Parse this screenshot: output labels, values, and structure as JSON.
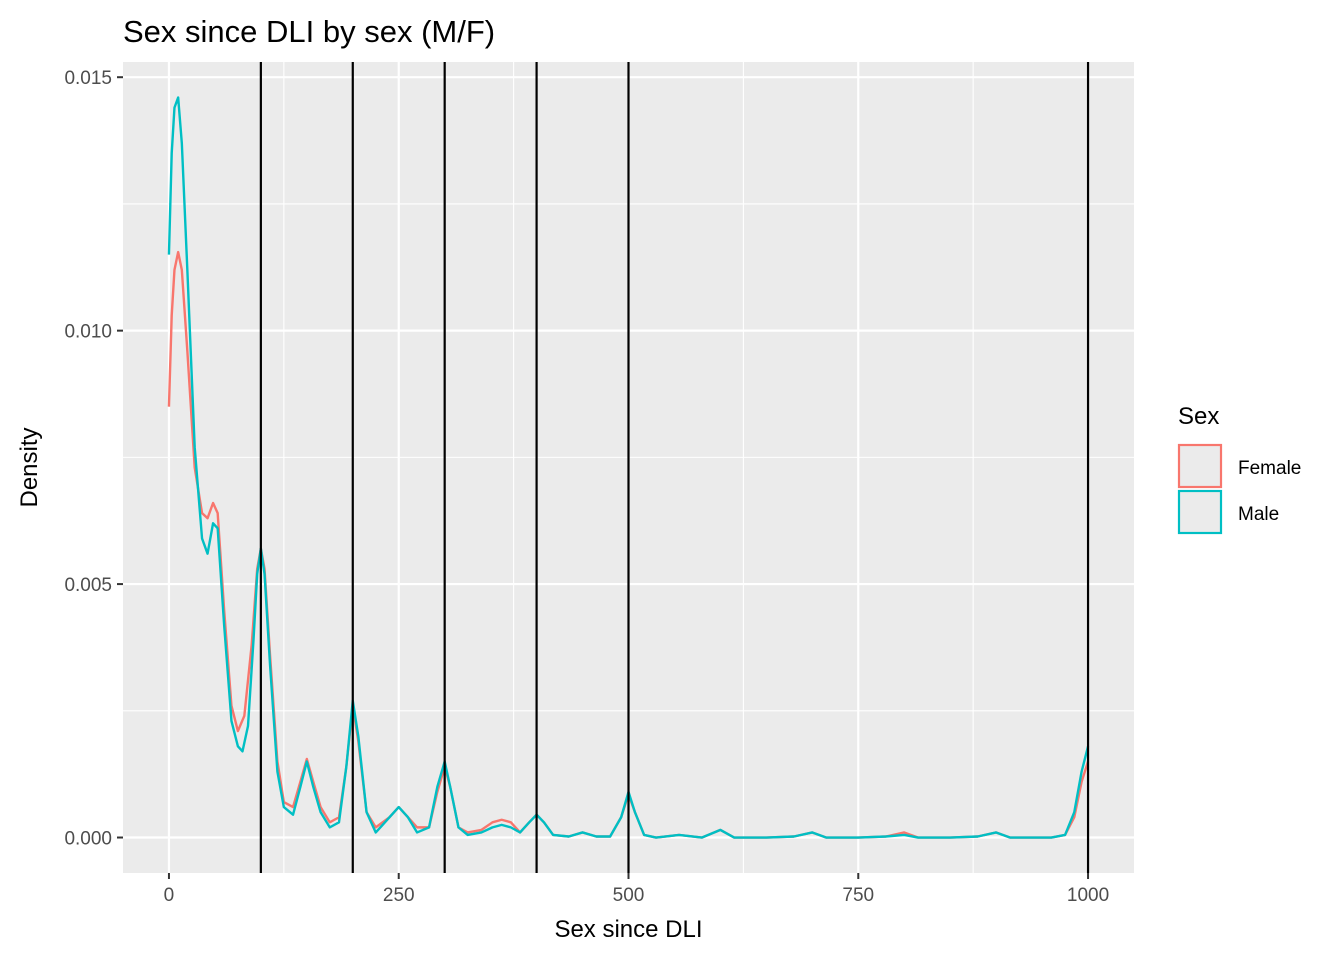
{
  "chart_data": {
    "type": "line",
    "title": "Sex since DLI by sex (M/F)",
    "xlabel": "Sex since DLI",
    "ylabel": "Density",
    "xlim": [
      -50,
      1050
    ],
    "ylim": [
      -0.0007,
      0.0153
    ],
    "x_ticks": [
      0,
      250,
      500,
      750,
      1000
    ],
    "x_tick_labels": [
      "0",
      "250",
      "500",
      "750",
      "1000"
    ],
    "y_ticks": [
      0.0,
      0.005,
      0.01,
      0.015
    ],
    "y_tick_labels": [
      "0.000",
      "0.005",
      "0.010",
      "0.015"
    ],
    "grid": true,
    "legend": {
      "title": "Sex",
      "position": "right"
    },
    "vlines": [
      100,
      200,
      300,
      400,
      500,
      1000
    ],
    "vline_color": "#000000",
    "series": [
      {
        "name": "Female",
        "color": "#F8766D",
        "points": [
          [
            0,
            0.0085
          ],
          [
            3,
            0.0103
          ],
          [
            6,
            0.0112
          ],
          [
            10,
            0.01155
          ],
          [
            14,
            0.0112
          ],
          [
            20,
            0.0096
          ],
          [
            28,
            0.0073
          ],
          [
            36,
            0.0064
          ],
          [
            42,
            0.0063
          ],
          [
            48,
            0.0066
          ],
          [
            53,
            0.0064
          ],
          [
            60,
            0.0045
          ],
          [
            68,
            0.0026
          ],
          [
            75,
            0.0021
          ],
          [
            82,
            0.0024
          ],
          [
            90,
            0.0038
          ],
          [
            96,
            0.0053
          ],
          [
            100,
            0.0057
          ],
          [
            104,
            0.0053
          ],
          [
            110,
            0.0036
          ],
          [
            118,
            0.0015
          ],
          [
            125,
            0.0007
          ],
          [
            135,
            0.0006
          ],
          [
            143,
            0.0011
          ],
          [
            150,
            0.00155
          ],
          [
            157,
            0.0011
          ],
          [
            165,
            0.0006
          ],
          [
            175,
            0.0003
          ],
          [
            185,
            0.0004
          ],
          [
            193,
            0.0014
          ],
          [
            200,
            0.0026
          ],
          [
            206,
            0.0019
          ],
          [
            215,
            0.0005
          ],
          [
            225,
            0.0002
          ],
          [
            240,
            0.0004
          ],
          [
            250,
            0.0006
          ],
          [
            260,
            0.0004
          ],
          [
            270,
            0.0002
          ],
          [
            283,
            0.0002
          ],
          [
            292,
            0.0009
          ],
          [
            300,
            0.0014
          ],
          [
            306,
            0.001
          ],
          [
            315,
            0.0002
          ],
          [
            325,
            0.0001
          ],
          [
            340,
            0.00015
          ],
          [
            352,
            0.0003
          ],
          [
            362,
            0.00035
          ],
          [
            372,
            0.0003
          ],
          [
            382,
            0.0001
          ],
          [
            392,
            0.0003
          ],
          [
            400,
            0.00045
          ],
          [
            408,
            0.0003
          ],
          [
            418,
            5e-05
          ],
          [
            435,
            2e-05
          ],
          [
            450,
            0.0001
          ],
          [
            465,
            2e-05
          ],
          [
            480,
            2e-05
          ],
          [
            492,
            0.0004
          ],
          [
            500,
            0.00085
          ],
          [
            507,
            0.0005
          ],
          [
            517,
            5e-05
          ],
          [
            530,
            0
          ],
          [
            555,
            5e-05
          ],
          [
            580,
            0
          ],
          [
            600,
            0.00015
          ],
          [
            615,
            0
          ],
          [
            650,
            0
          ],
          [
            680,
            2e-05
          ],
          [
            700,
            0.0001
          ],
          [
            715,
            0
          ],
          [
            750,
            0
          ],
          [
            780,
            2e-05
          ],
          [
            800,
            0.0001
          ],
          [
            815,
            0
          ],
          [
            850,
            0
          ],
          [
            880,
            2e-05
          ],
          [
            900,
            0.0001
          ],
          [
            915,
            0
          ],
          [
            960,
            0
          ],
          [
            975,
            5e-05
          ],
          [
            985,
            0.0004
          ],
          [
            993,
            0.0011
          ],
          [
            1000,
            0.0015
          ]
        ]
      },
      {
        "name": "Male",
        "color": "#00BFC4",
        "points": [
          [
            0,
            0.0115
          ],
          [
            3,
            0.0135
          ],
          [
            6,
            0.0144
          ],
          [
            10,
            0.0146
          ],
          [
            14,
            0.0137
          ],
          [
            20,
            0.0112
          ],
          [
            28,
            0.0077
          ],
          [
            36,
            0.0059
          ],
          [
            42,
            0.0056
          ],
          [
            48,
            0.0062
          ],
          [
            53,
            0.0061
          ],
          [
            60,
            0.0042
          ],
          [
            68,
            0.0023
          ],
          [
            75,
            0.0018
          ],
          [
            80,
            0.0017
          ],
          [
            86,
            0.0022
          ],
          [
            92,
            0.0039
          ],
          [
            96,
            0.0052
          ],
          [
            100,
            0.0057
          ],
          [
            104,
            0.0052
          ],
          [
            110,
            0.0034
          ],
          [
            118,
            0.0013
          ],
          [
            125,
            0.0006
          ],
          [
            135,
            0.00045
          ],
          [
            143,
            0.001
          ],
          [
            150,
            0.0015
          ],
          [
            157,
            0.001
          ],
          [
            165,
            0.0005
          ],
          [
            175,
            0.0002
          ],
          [
            185,
            0.0003
          ],
          [
            193,
            0.0014
          ],
          [
            200,
            0.0027
          ],
          [
            206,
            0.002
          ],
          [
            215,
            0.0005
          ],
          [
            225,
            0.0001
          ],
          [
            240,
            0.0004
          ],
          [
            250,
            0.0006
          ],
          [
            260,
            0.0004
          ],
          [
            270,
            0.0001
          ],
          [
            283,
            0.0002
          ],
          [
            292,
            0.001
          ],
          [
            300,
            0.0015
          ],
          [
            306,
            0.001
          ],
          [
            315,
            0.0002
          ],
          [
            325,
            5e-05
          ],
          [
            340,
            0.0001
          ],
          [
            352,
            0.0002
          ],
          [
            362,
            0.00025
          ],
          [
            372,
            0.0002
          ],
          [
            382,
            0.0001
          ],
          [
            392,
            0.0003
          ],
          [
            400,
            0.00045
          ],
          [
            408,
            0.0003
          ],
          [
            418,
            5e-05
          ],
          [
            435,
            2e-05
          ],
          [
            450,
            0.0001
          ],
          [
            465,
            2e-05
          ],
          [
            480,
            2e-05
          ],
          [
            492,
            0.0004
          ],
          [
            500,
            0.0009
          ],
          [
            507,
            0.0005
          ],
          [
            517,
            5e-05
          ],
          [
            530,
            0
          ],
          [
            555,
            5e-05
          ],
          [
            580,
            0
          ],
          [
            600,
            0.00015
          ],
          [
            615,
            0
          ],
          [
            650,
            0
          ],
          [
            680,
            2e-05
          ],
          [
            700,
            0.0001
          ],
          [
            715,
            0
          ],
          [
            750,
            0
          ],
          [
            780,
            2e-05
          ],
          [
            800,
            5e-05
          ],
          [
            815,
            0
          ],
          [
            850,
            0
          ],
          [
            880,
            2e-05
          ],
          [
            900,
            0.0001
          ],
          [
            915,
            0
          ],
          [
            960,
            0
          ],
          [
            975,
            5e-05
          ],
          [
            985,
            0.0005
          ],
          [
            993,
            0.0013
          ],
          [
            1000,
            0.0018
          ]
        ]
      }
    ]
  }
}
